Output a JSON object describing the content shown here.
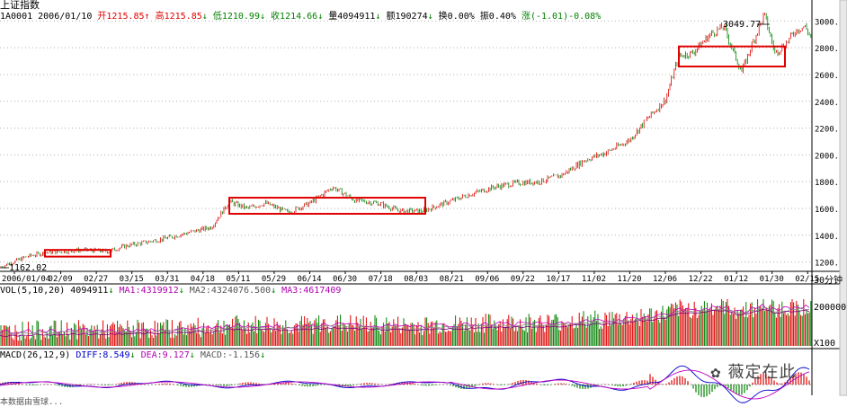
{
  "title": "上证指数",
  "header": {
    "code_date": "1A0001 2006/01/10",
    "open": "开1215.85",
    "high": "高1215.85",
    "low": "低1210.99",
    "close": "收1214.66",
    "volume": "量4094911",
    "amount": "额190274",
    "turnover": "换0.00%",
    "amplitude": "振0.40%",
    "change": "涨(-1.01)-0.08%"
  },
  "chart_data": {
    "type": "candlestick",
    "y_ticks": [
      "3000.0",
      "2800.0",
      "2600.0",
      "2400.0",
      "2200.0",
      "2000.0",
      "1800.0",
      "1600.0",
      "1400.0",
      "1200.0"
    ],
    "ylim": [
      1130,
      3130
    ],
    "x_labels": [
      "2006/01/04",
      "02/09",
      "02/27",
      "03/15",
      "03/31",
      "04/18",
      "05/11",
      "05/29",
      "06/14",
      "06/30",
      "07/18",
      "08/03",
      "08/21",
      "09/06",
      "09/22",
      "10/17",
      "11/02",
      "11/20",
      "12/06",
      "12/22",
      "01/12",
      "01/30",
      "02/15"
    ],
    "period_label": "30分钟",
    "annotations": {
      "max": "3049.77",
      "min": "1162.02"
    },
    "path": [
      [
        0,
        1162
      ],
      [
        30,
        1240
      ],
      [
        50,
        1270
      ],
      [
        90,
        1290
      ],
      [
        120,
        1280
      ],
      [
        140,
        1320
      ],
      [
        180,
        1370
      ],
      [
        210,
        1420
      ],
      [
        235,
        1460
      ],
      [
        255,
        1650
      ],
      [
        275,
        1600
      ],
      [
        295,
        1640
      ],
      [
        320,
        1570
      ],
      [
        345,
        1640
      ],
      [
        370,
        1760
      ],
      [
        395,
        1660
      ],
      [
        420,
        1640
      ],
      [
        445,
        1580
      ],
      [
        470,
        1580
      ],
      [
        495,
        1640
      ],
      [
        520,
        1700
      ],
      [
        550,
        1760
      ],
      [
        575,
        1790
      ],
      [
        600,
        1800
      ],
      [
        625,
        1850
      ],
      [
        650,
        1960
      ],
      [
        675,
        2020
      ],
      [
        700,
        2110
      ],
      [
        720,
        2270
      ],
      [
        740,
        2410
      ],
      [
        755,
        2740
      ],
      [
        770,
        2760
      ],
      [
        790,
        2900
      ],
      [
        805,
        2960
      ],
      [
        815,
        2780
      ],
      [
        825,
        2620
      ],
      [
        835,
        2800
      ],
      [
        850,
        3049
      ],
      [
        862,
        2760
      ],
      [
        875,
        2840
      ],
      [
        885,
        2930
      ],
      [
        895,
        2960
      ],
      [
        902,
        2880
      ]
    ],
    "highlight_boxes": [
      {
        "i0": 50,
        "i1": 123,
        "lo": 1240,
        "hi": 1290
      },
      {
        "i0": 255,
        "i1": 473,
        "lo": 1560,
        "hi": 1680
      },
      {
        "i0": 755,
        "i1": 873,
        "lo": 2660,
        "hi": 2810
      }
    ]
  },
  "volume_panel": {
    "label": "VOL(5,10,20)",
    "value": "4094911",
    "ma1": "MA1:4319912",
    "ma2": "MA2:4324076.500",
    "ma3": "MA3:4617409",
    "tick_top": "200000",
    "tick_bottom": "X100"
  },
  "macd_panel": {
    "label": "MACD(26,12,9)",
    "diff": "DIFF:8.549",
    "dea": "DEA:9.127",
    "macd": "MACD:-1.156"
  },
  "watermark": "薇定在此",
  "footer": "本数据由雪球..."
}
